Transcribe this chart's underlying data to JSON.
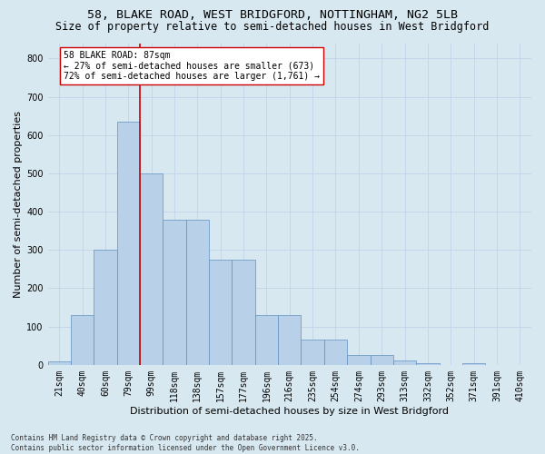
{
  "title1": "58, BLAKE ROAD, WEST BRIDGFORD, NOTTINGHAM, NG2 5LB",
  "title2": "Size of property relative to semi-detached houses in West Bridgford",
  "xlabel": "Distribution of semi-detached houses by size in West Bridgford",
  "ylabel": "Number of semi-detached properties",
  "categories": [
    "21sqm",
    "40sqm",
    "60sqm",
    "79sqm",
    "99sqm",
    "118sqm",
    "138sqm",
    "157sqm",
    "177sqm",
    "196sqm",
    "216sqm",
    "235sqm",
    "254sqm",
    "274sqm",
    "293sqm",
    "313sqm",
    "332sqm",
    "352sqm",
    "371sqm",
    "391sqm",
    "410sqm"
  ],
  "values": [
    8,
    130,
    300,
    635,
    500,
    380,
    380,
    275,
    275,
    130,
    130,
    65,
    65,
    25,
    25,
    12,
    5,
    0,
    5,
    0,
    0
  ],
  "bar_color": "#b8d0e8",
  "bar_edge_color": "#6090c0",
  "reference_line_x": 3.5,
  "reference_line_color": "#cc0000",
  "annotation_text": "58 BLAKE ROAD: 87sqm\n← 27% of semi-detached houses are smaller (673)\n72% of semi-detached houses are larger (1,761) →",
  "annotation_box_color": "#ffffff",
  "annotation_box_edge_color": "#cc0000",
  "ylim": [
    0,
    840
  ],
  "yticks": [
    0,
    100,
    200,
    300,
    400,
    500,
    600,
    700,
    800
  ],
  "grid_color": "#c0d4e8",
  "background_color": "#d8e8f0",
  "plot_bg_color": "#d8e8f0",
  "footer_text": "Contains HM Land Registry data © Crown copyright and database right 2025.\nContains public sector information licensed under the Open Government Licence v3.0.",
  "title_fontsize": 9.5,
  "subtitle_fontsize": 8.5,
  "ylabel_fontsize": 8,
  "xlabel_fontsize": 8,
  "tick_fontsize": 7,
  "annot_fontsize": 7,
  "footer_fontsize": 5.5
}
